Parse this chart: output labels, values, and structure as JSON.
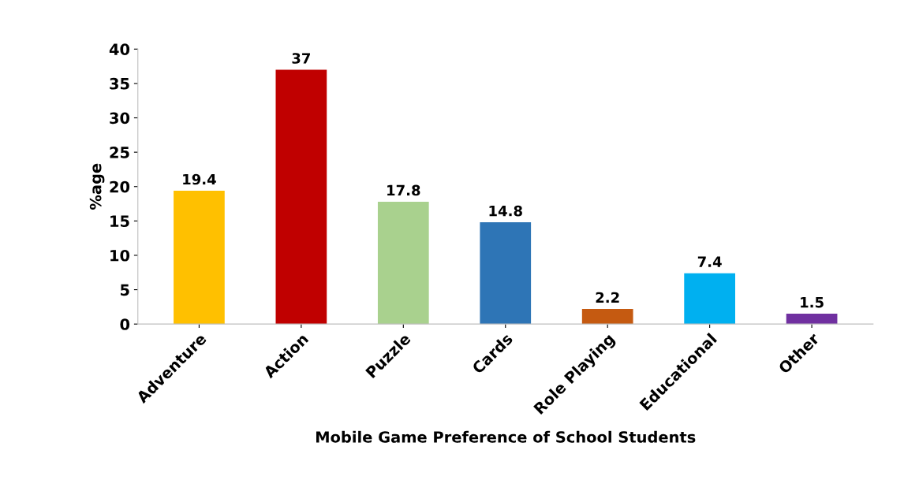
{
  "chart_data": {
    "type": "bar",
    "categories": [
      "Adventure",
      "Action",
      "Puzzle",
      "Cards",
      "Role Playing",
      "Educational",
      "Other"
    ],
    "values": [
      19.4,
      37,
      17.8,
      14.8,
      2.2,
      7.4,
      1.5
    ],
    "colors": [
      "#ffc000",
      "#c00000",
      "#a9d18e",
      "#2e75b6",
      "#c55a11",
      "#00b0f0",
      "#7030a0"
    ],
    "xlabel": "Mobile Game Preference of School Students",
    "ylabel": "%age",
    "ylim": [
      0,
      40
    ],
    "yticks": [
      0,
      5,
      10,
      15,
      20,
      25,
      30,
      35,
      40
    ],
    "data_labels": true,
    "grid": false,
    "legend": false
  }
}
